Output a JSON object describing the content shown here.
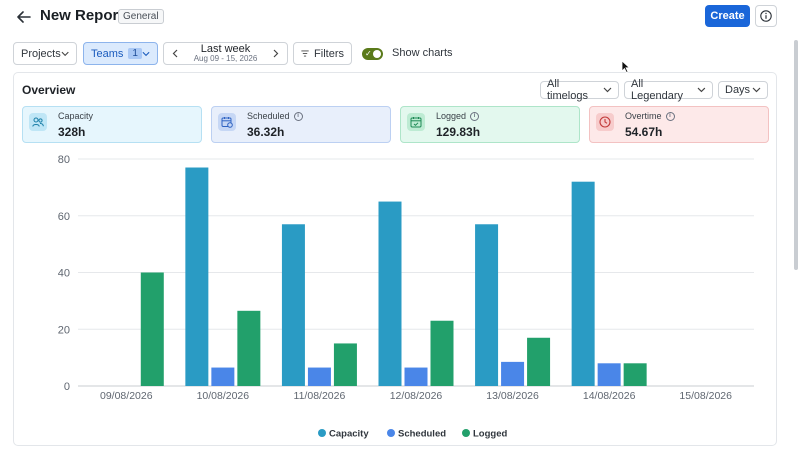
{
  "header": {
    "title": "New Report",
    "badge": "General",
    "create_label": "Create",
    "icons": [
      "back-arrow-icon",
      "info-icon"
    ]
  },
  "toolbar": {
    "projects_label": "Projects",
    "teams_label": "Teams",
    "teams_count": "1",
    "week_label": "Last week",
    "week_range": "Aug 09 - 15, 2026",
    "filters_label": "Filters",
    "show_charts_label": "Show charts",
    "show_charts_on": true
  },
  "overview": {
    "title": "Overview",
    "dropdowns": [
      "All timelogs",
      "All Legendary",
      "Days"
    ]
  },
  "cards": [
    {
      "label": "Capacity",
      "value": "328h",
      "info": false,
      "bg": "#e6f6fd",
      "border": "#b6e0f3",
      "icon_bg": "#bfe6f6",
      "icon_color": "#1b7fa8",
      "icon": "users-icon"
    },
    {
      "label": "Scheduled",
      "value": "36.32h",
      "info": true,
      "bg": "#e8effb",
      "border": "#bcd0f2",
      "icon_bg": "#c6d7f5",
      "icon_color": "#2f63c2",
      "icon": "calendar-clock-icon"
    },
    {
      "label": "Logged",
      "value": "129.83h",
      "info": true,
      "bg": "#e3f8ee",
      "border": "#aee5c9",
      "icon_bg": "#bdebd3",
      "icon_color": "#1d8a55",
      "icon": "calendar-check-icon"
    },
    {
      "label": "Overtime",
      "value": "54.67h",
      "info": true,
      "bg": "#fde9e9",
      "border": "#f3c2c2",
      "icon_bg": "#f7cccc",
      "icon_color": "#c23a3a",
      "icon": "clock-icon"
    }
  ],
  "colors": {
    "capacity": "#2a9bc4",
    "scheduled": "#4a86e8",
    "logged": "#22a06b",
    "primary": "#1a66d9"
  },
  "chart_data": {
    "type": "bar",
    "categories": [
      "09/08/2026",
      "10/08/2026",
      "11/08/2026",
      "12/08/2026",
      "13/08/2026",
      "14/08/2026",
      "15/08/2026"
    ],
    "series": [
      {
        "name": "Capacity",
        "values": [
          0,
          77,
          57,
          65,
          57,
          72,
          0
        ]
      },
      {
        "name": "Scheduled",
        "values": [
          0,
          6.5,
          6.5,
          6.5,
          8.5,
          8,
          0
        ]
      },
      {
        "name": "Logged",
        "values": [
          40,
          26.5,
          15,
          23,
          17,
          8,
          0
        ]
      }
    ],
    "yticks": [
      0,
      20,
      40,
      60,
      80
    ],
    "ylim": [
      0,
      80
    ],
    "grid": true,
    "legend_position": "bottom-center"
  }
}
